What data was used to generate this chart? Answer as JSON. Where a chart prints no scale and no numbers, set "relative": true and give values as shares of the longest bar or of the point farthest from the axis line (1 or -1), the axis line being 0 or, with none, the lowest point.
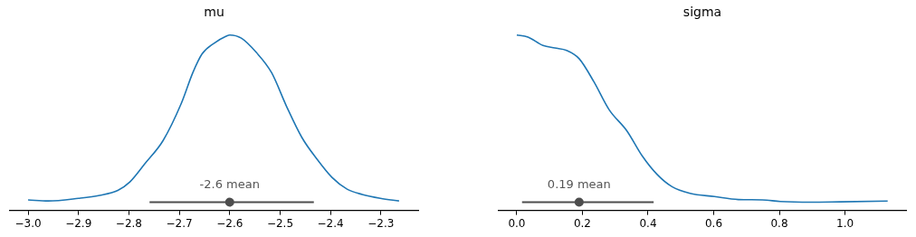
{
  "chart_data": [
    {
      "type": "line",
      "title": "mu",
      "relative": true,
      "grid": false,
      "legend": false,
      "tick_labels": "x",
      "xlim": [
        -3.036,
        -2.226
      ],
      "xticks": [
        {
          "value": -3.0,
          "label": "−3.0"
        },
        {
          "value": -2.9,
          "label": "−2.9"
        },
        {
          "value": -2.8,
          "label": "−2.8"
        },
        {
          "value": -2.7,
          "label": "−2.7"
        },
        {
          "value": -2.6,
          "label": "−2.6"
        },
        {
          "value": -2.5,
          "label": "−2.5"
        },
        {
          "value": -2.4,
          "label": "−2.4"
        },
        {
          "value": -2.3,
          "label": "−2.3"
        }
      ],
      "series": [
        {
          "color": "#1f77b4",
          "marker": "none",
          "x": [
            -3.0,
            -2.96,
            -2.9,
            -2.858,
            -2.822,
            -2.798,
            -2.768,
            -2.732,
            -2.696,
            -2.673,
            -2.655,
            -2.631,
            -2.607,
            -2.6,
            -2.577,
            -2.547,
            -2.517,
            -2.487,
            -2.457,
            -2.427,
            -2.397,
            -2.367,
            -2.337,
            -2.301,
            -2.264
          ],
          "values": [
            0.06,
            0.054,
            0.069,
            0.086,
            0.114,
            0.162,
            0.267,
            0.399,
            0.61,
            0.786,
            0.891,
            0.953,
            0.993,
            1.0,
            0.982,
            0.9,
            0.786,
            0.592,
            0.417,
            0.293,
            0.188,
            0.121,
            0.091,
            0.069,
            0.054
          ]
        },
        {
          "type": "scatter",
          "color": "#4d4d4d",
          "marker": "circle",
          "x": [
            -2.6
          ],
          "values": [
            0.047
          ],
          "xerrors": [
            [
              -2.759,
              -2.433
            ]
          ]
        }
      ],
      "annotations": [
        "-2.6 mean"
      ]
    },
    {
      "type": "line",
      "title": "sigma",
      "relative": true,
      "grid": false,
      "legend": false,
      "tick_labels": "x",
      "xlim": [
        -0.055,
        1.186
      ],
      "xticks": [
        {
          "value": 0.0,
          "label": "0.0"
        },
        {
          "value": 0.2,
          "label": "0.2"
        },
        {
          "value": 0.4,
          "label": "0.4"
        },
        {
          "value": 0.6,
          "label": "0.6"
        },
        {
          "value": 0.8,
          "label": "0.8"
        },
        {
          "value": 1.0,
          "label": "1.0"
        }
      ],
      "series": [
        {
          "color": "#1f77b4",
          "marker": "none",
          "x": [
            0,
            0.034,
            0.08,
            0.116,
            0.152,
            0.19,
            0.235,
            0.281,
            0.336,
            0.382,
            0.427,
            0.473,
            0.528,
            0.602,
            0.675,
            0.748,
            0.803,
            0.895,
            0.986,
            1.13
          ],
          "values": [
            1.0,
            0.988,
            0.94,
            0.926,
            0.912,
            0.865,
            0.733,
            0.575,
            0.452,
            0.311,
            0.206,
            0.135,
            0.097,
            0.079,
            0.062,
            0.06,
            0.051,
            0.047,
            0.049,
            0.053
          ]
        },
        {
          "type": "scatter",
          "color": "#4d4d4d",
          "marker": "circle",
          "x": [
            0.19
          ],
          "values": [
            0.047
          ],
          "xerrors": [
            [
              0.016,
              0.417
            ]
          ]
        }
      ],
      "annotations": [
        "0.19 mean"
      ]
    }
  ]
}
